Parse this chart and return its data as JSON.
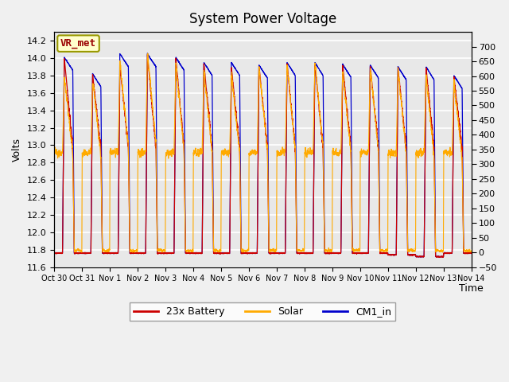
{
  "title": "System Power Voltage",
  "xlabel": "Time",
  "ylabel": "Volts",
  "ylim_left": [
    11.6,
    14.3
  ],
  "ylim_right": [
    -50,
    750
  ],
  "yticks_left": [
    11.6,
    11.8,
    12.0,
    12.2,
    12.4,
    12.6,
    12.8,
    13.0,
    13.2,
    13.4,
    13.6,
    13.8,
    14.0,
    14.2
  ],
  "yticks_right": [
    -50,
    0,
    50,
    100,
    150,
    200,
    250,
    300,
    350,
    400,
    450,
    500,
    550,
    600,
    650,
    700
  ],
  "xtick_labels": [
    "Oct 30",
    "Oct 31",
    "Nov 1",
    "Nov 2",
    "Nov 3",
    "Nov 4",
    "Nov 5",
    "Nov 6",
    "Nov 7",
    "Nov 8",
    "Nov 9",
    "Nov 10",
    "Nov 11",
    "Nov 12",
    "Nov 13",
    "Nov 14"
  ],
  "color_battery": "#cc0000",
  "color_solar": "#ffaa00",
  "color_cm1": "#0000cc",
  "legend_labels": [
    "23x Battery",
    "Solar",
    "CM1_in"
  ],
  "annotation_text": "VR_met",
  "annotation_color": "#990000",
  "annotation_bg": "#ffffcc",
  "annotation_border": "#999900",
  "plot_bg": "#e8e8e8",
  "fig_bg": "#f0f0f0",
  "grid_color": "#ffffff",
  "title_fontsize": 12,
  "axis_fontsize": 9,
  "tick_fontsize": 8,
  "legend_fontsize": 9
}
